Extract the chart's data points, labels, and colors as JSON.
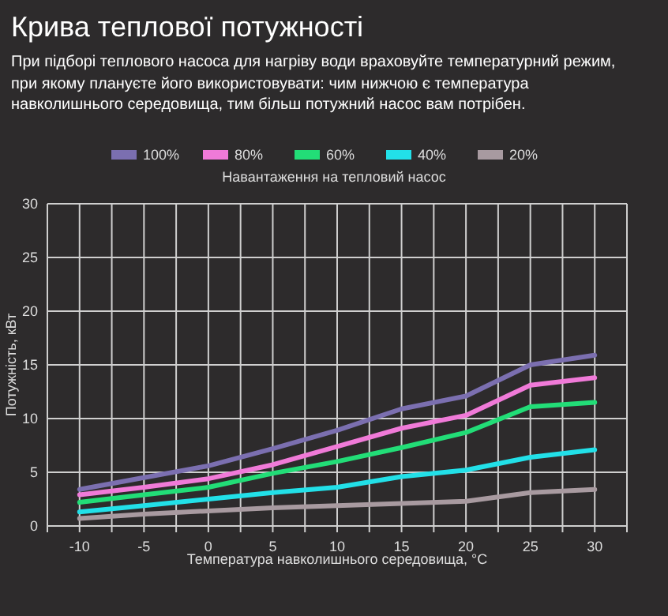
{
  "chart_data": {
    "type": "line",
    "title": "Крива теплової потужності",
    "subtitle": "При підборі теплового насоса для нагріву води враховуйте температурний режим, при якому плануєте його використовувати: чим нижчою є температура навколишнього середовища, тим більш потужний насос вам потрібен.",
    "legend_title": "Навантаження на тепловий насос",
    "xlabel": "Температура навколишнього середовища, °C",
    "ylabel": "Потужність, кВт",
    "x": [
      -10,
      -5,
      0,
      5,
      10,
      15,
      20,
      25,
      30
    ],
    "series": [
      {
        "name": "100%",
        "color": "#7b6fb0",
        "values": [
          3.4,
          4.5,
          5.6,
          7.2,
          8.9,
          10.9,
          12.1,
          15.0,
          15.9
        ]
      },
      {
        "name": "80%",
        "color": "#f07ad8",
        "values": [
          2.9,
          3.6,
          4.4,
          5.7,
          7.4,
          9.1,
          10.3,
          13.1,
          13.8
        ]
      },
      {
        "name": "60%",
        "color": "#22dd77",
        "values": [
          2.2,
          2.9,
          3.6,
          4.9,
          6.0,
          7.3,
          8.7,
          11.1,
          11.5
        ]
      },
      {
        "name": "40%",
        "color": "#22e0e8",
        "values": [
          1.3,
          1.9,
          2.5,
          3.1,
          3.6,
          4.6,
          5.2,
          6.4,
          7.1
        ]
      },
      {
        "name": "20%",
        "color": "#a89aa0",
        "values": [
          0.7,
          1.1,
          1.4,
          1.7,
          1.9,
          2.1,
          2.3,
          3.1,
          3.4
        ]
      }
    ],
    "xlim": [
      -12.5,
      32.5
    ],
    "xticks": [
      {
        "value": -12.5,
        "label": null
      },
      -10,
      {
        "value": -7.5,
        "label": null
      },
      -5,
      {
        "value": -2.5,
        "label": null
      },
      0,
      {
        "value": 2.5,
        "label": null
      },
      5,
      {
        "value": 7.5,
        "label": null
      },
      10,
      {
        "value": 12.5,
        "label": null
      },
      15,
      {
        "value": 17.5,
        "label": null
      },
      20,
      {
        "value": 22.5,
        "label": null
      },
      25,
      {
        "value": 27.5,
        "label": null
      },
      30,
      {
        "value": 32.5,
        "label": null
      }
    ],
    "ylim": [
      0,
      30
    ],
    "yticks": [
      0,
      5,
      10,
      15,
      20,
      25,
      30
    ],
    "grid": true,
    "legend": "top",
    "marker": "none",
    "line_style": "solid"
  }
}
